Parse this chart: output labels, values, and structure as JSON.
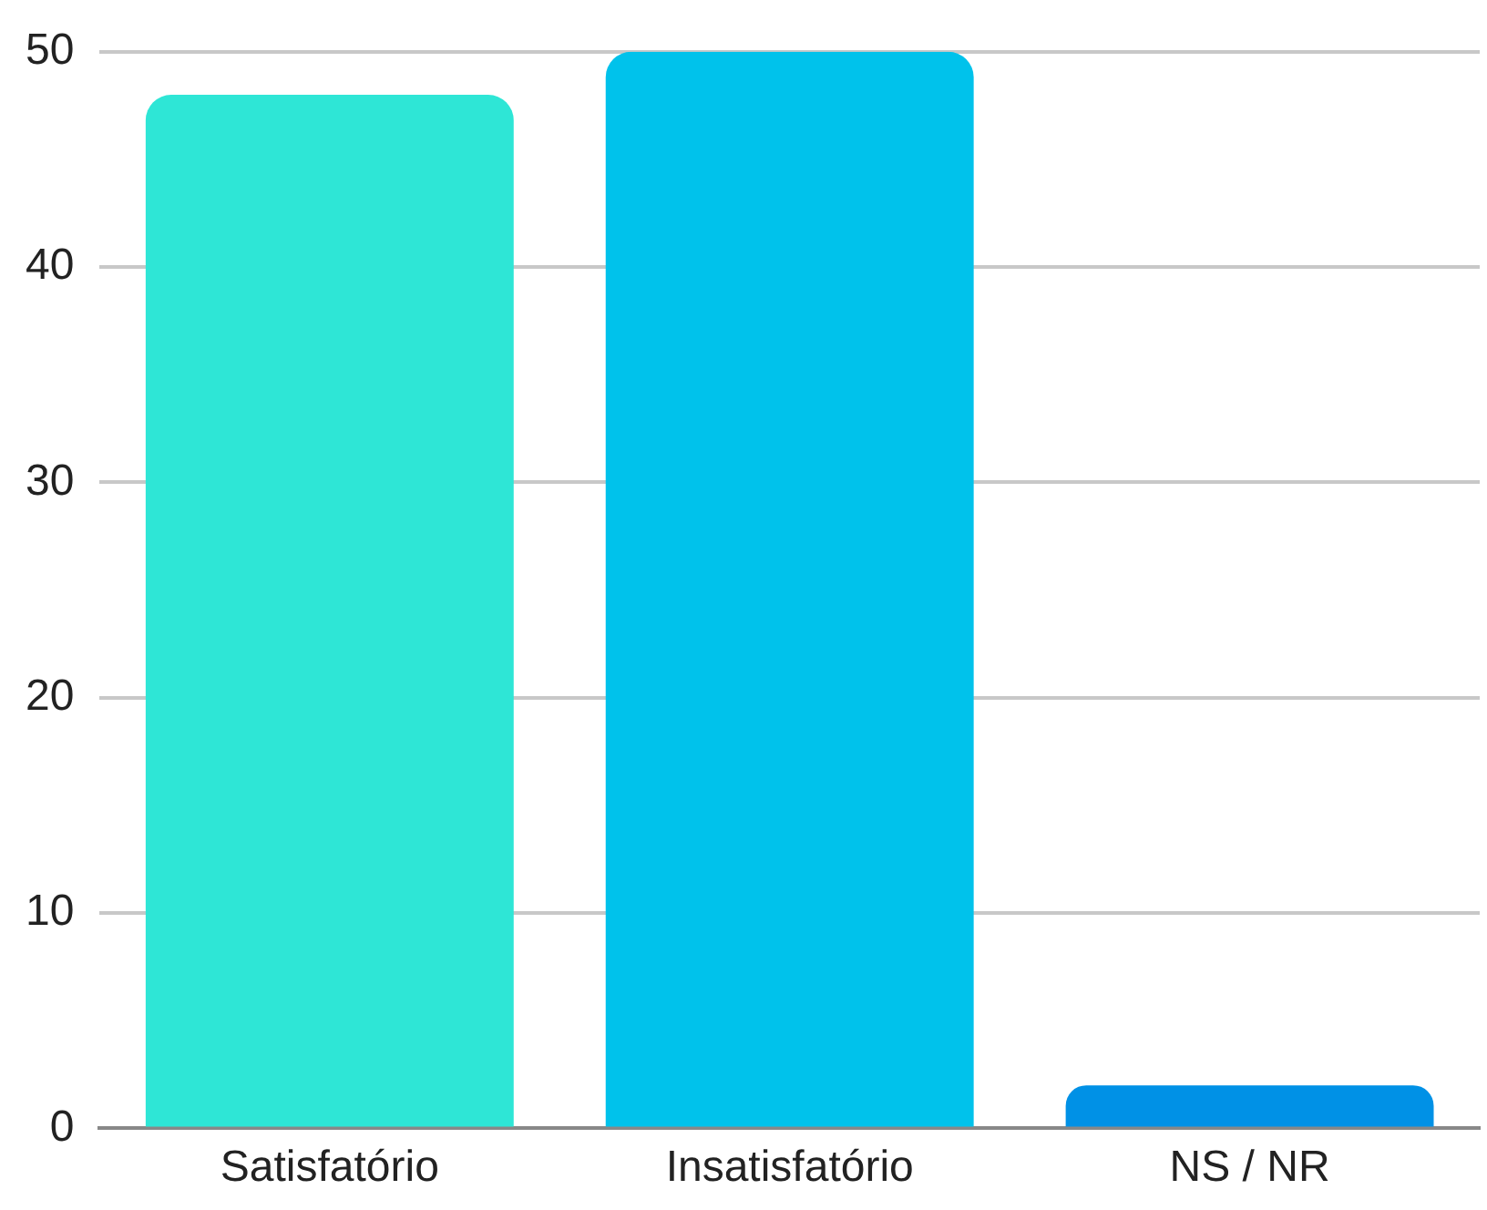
{
  "chart_data": {
    "type": "bar",
    "categories": [
      "Satisfatório",
      "Insatisfatório",
      "NS / NR"
    ],
    "values": [
      48,
      50,
      2
    ],
    "colors": [
      "#2ee6d6",
      "#00c2eb",
      "#0091e6"
    ],
    "ylim": [
      0,
      50
    ],
    "yticks": [
      0,
      10,
      20,
      30,
      40,
      50
    ],
    "grid": "y",
    "legend": false
  }
}
